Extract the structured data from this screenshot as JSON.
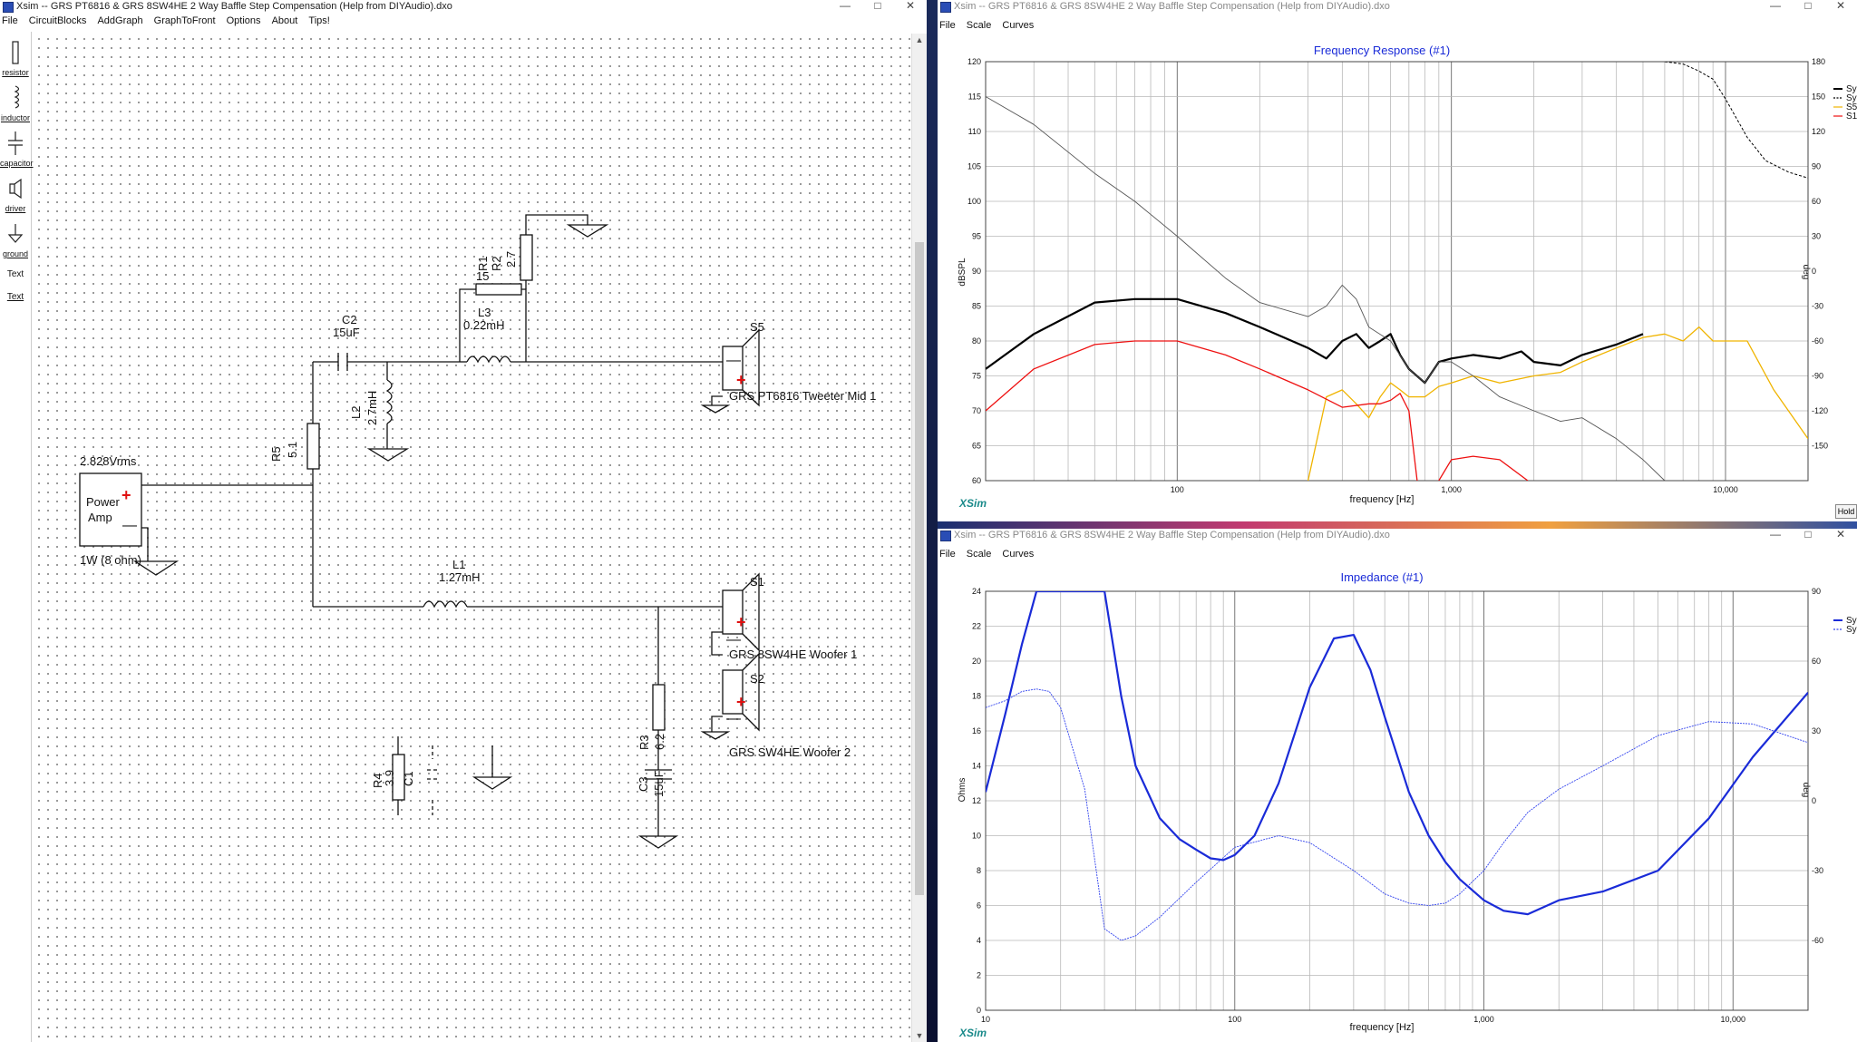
{
  "left_window": {
    "title": "Xsim -- GRS PT6816 & GRS 8SW4HE 2 Way Baffle Step Compensation (Help from DIYAudio).dxo",
    "menu": [
      "File",
      "CircuitBlocks",
      "AddGraph",
      "GraphToFront",
      "Options",
      "About",
      "Tips!"
    ],
    "tools": [
      {
        "label": "resistor",
        "icon": "resistor-icon"
      },
      {
        "label": "inductor",
        "icon": "inductor-icon"
      },
      {
        "label": "capacitor",
        "icon": "capacitor-icon"
      },
      {
        "label": "driver",
        "icon": "speaker-icon"
      },
      {
        "label": "ground",
        "icon": "ground-icon"
      },
      {
        "label": "Text",
        "icon": ""
      },
      {
        "label": "Text",
        "icon": ""
      }
    ],
    "schematic": {
      "amp_voltage": "2.828Vrms",
      "amp_name1": "Power",
      "amp_name2": "Amp",
      "amp_load": "1W (8 ohm)",
      "R1_name": "R1",
      "R1_value": "15",
      "R2_name": "R2",
      "R2_value": "2.7",
      "L3_name": "L3",
      "L3_value": "0.22mH",
      "C2_name": "C2",
      "C2_value": "15uF",
      "L2_name": "L2",
      "L2_value": "2.7mH",
      "R5_name": "R5",
      "R5_value": "5.1",
      "S5_name": "S5",
      "S5_label": "GRS PT6816 Tweeter Mid 1",
      "L1_name": "L1",
      "L1_value": "1.27mH",
      "S1_name": "S1",
      "S1_label": "GRS 8SW4HE Woofer 1",
      "S2_name": "S2",
      "S2_label": "GRS SW4HE Woofer 2",
      "R3_name": "R3",
      "R3_value": "6.2",
      "C3_name": "C3",
      "C3_value": "15uF",
      "R4_name": "R4",
      "R4_value": "3.9",
      "C1_name": "C1"
    }
  },
  "freq_window": {
    "title": "Xsim -- GRS PT6816 & GRS 8SW4HE 2 Way Baffle Step Compensation (Help from DIYAudio).dxo",
    "menu": [
      "File",
      "Scale",
      "Curves"
    ],
    "brand": "XSim",
    "hold_label": "Hold",
    "chart_data": {
      "type": "line",
      "title": "Frequency Response (#1)",
      "xlabel": "frequency [Hz]",
      "ylabel": "dBSPL",
      "y2label": "deg",
      "x_scale": "log",
      "xlim": [
        20,
        20000
      ],
      "ylim": [
        60,
        120
      ],
      "y2lim": [
        -180,
        180
      ],
      "x_tick_labels": [
        "100",
        "1,000",
        "10,000"
      ],
      "y_tick_labels": [
        "60",
        "65",
        "70",
        "75",
        "80",
        "85",
        "90",
        "95",
        "100",
        "105",
        "110",
        "115",
        "120"
      ],
      "y2_tick_labels": [
        "-150",
        "-120",
        "-90",
        "-60",
        "-30",
        "0",
        "30",
        "60",
        "90",
        "120",
        "150",
        "180"
      ],
      "grid": true,
      "legend_position": "right",
      "series": [
        {
          "name": "Sys",
          "color": "#000000",
          "style": "solid-bold",
          "x": [
            20,
            30,
            50,
            70,
            100,
            150,
            200,
            300,
            350,
            400,
            450,
            500,
            550,
            600,
            650,
            700,
            800,
            900,
            1000,
            1200,
            1500,
            1800,
            2000,
            2500,
            3000,
            4000,
            5000
          ],
          "y": [
            76,
            81,
            85.5,
            86,
            86,
            84,
            82,
            79,
            77.5,
            80,
            81,
            79,
            80,
            81,
            78,
            76,
            74,
            77,
            77.5,
            78,
            77.5,
            78.5,
            77,
            76.5,
            78,
            79.5,
            81
          ]
        },
        {
          "name": "Sys°",
          "color": "#000000",
          "style": "dashed",
          "axis": "y2",
          "x": [
            6000,
            7000,
            8000,
            9000,
            10000,
            12000,
            14000,
            17000,
            20000
          ],
          "y": [
            180,
            178,
            172,
            165,
            148,
            115,
            95,
            85,
            80
          ]
        },
        {
          "name": "S5",
          "color": "#f0b400",
          "style": "solid",
          "x": [
            300,
            350,
            400,
            450,
            500,
            550,
            600,
            650,
            700,
            800,
            900,
            1000,
            1200,
            1500,
            2000,
            2500,
            3000,
            4000,
            5000,
            6000,
            7000,
            8000,
            9000,
            10000,
            12000,
            15000,
            20000
          ],
          "y": [
            60,
            72,
            73,
            71,
            69,
            72,
            74,
            73,
            72,
            72,
            73.5,
            74,
            75,
            74,
            75,
            75.5,
            77,
            79,
            80.5,
            81,
            80,
            82,
            80,
            80,
            80,
            73,
            66
          ]
        },
        {
          "name": "S1",
          "color": "#ee1111",
          "style": "solid",
          "x": [
            20,
            30,
            50,
            70,
            100,
            150,
            200,
            300,
            400,
            500,
            550,
            600,
            650,
            700,
            750
          ],
          "y": [
            70,
            76,
            79.5,
            80,
            80,
            78,
            76,
            73,
            70.5,
            71,
            71,
            71.5,
            72.5,
            70,
            60
          ]
        },
        {
          "name": "S1",
          "color": "#ee1111",
          "style": "solid",
          "x": [
            900,
            1000,
            1200,
            1500,
            1900
          ],
          "y": [
            60,
            63,
            63.5,
            63,
            60
          ]
        },
        {
          "name": "",
          "color": "#555555",
          "style": "thin",
          "x": [
            20,
            30,
            50,
            70,
            100,
            150,
            200,
            300,
            350,
            400,
            450,
            500,
            600,
            700,
            800,
            900,
            1000,
            1200,
            1500,
            2000,
            2500,
            3000,
            4000,
            5000,
            6000
          ],
          "y": [
            115,
            111,
            104,
            100,
            95,
            89,
            85.5,
            83.5,
            85,
            88,
            86,
            82,
            80,
            76,
            74,
            77,
            77,
            75,
            72,
            70,
            68.5,
            69,
            66,
            63,
            60
          ]
        }
      ]
    }
  },
  "imp_window": {
    "title": "Xsim -- GRS PT6816 & GRS 8SW4HE 2 Way Baffle Step Compensation (Help from DIYAudio).dxo",
    "menu": [
      "File",
      "Scale",
      "Curves"
    ],
    "brand": "XSim",
    "chart_data": {
      "type": "line",
      "title": "Impedance (#1)",
      "xlabel": "frequency [Hz]",
      "ylabel": "Ohms",
      "y2label": "deg",
      "x_scale": "log",
      "xlim": [
        10,
        20000
      ],
      "ylim": [
        0,
        24
      ],
      "y2lim": [
        -90,
        90
      ],
      "x_tick_labels": [
        "10",
        "100",
        "1,000",
        "10,000"
      ],
      "y_tick_labels": [
        "0",
        "2",
        "4",
        "6",
        "8",
        "10",
        "12",
        "14",
        "16",
        "18",
        "20",
        "22",
        "24"
      ],
      "y2_tick_labels": [
        "-60",
        "-30",
        "0",
        "30",
        "60",
        "90"
      ],
      "grid": true,
      "legend_position": "right",
      "series": [
        {
          "name": "Sys",
          "color": "#1a2bd8",
          "style": "solid-bold",
          "x": [
            10,
            12,
            14,
            16,
            18,
            30,
            35,
            40,
            50,
            60,
            70,
            80,
            90,
            100,
            120,
            150,
            200,
            250,
            300,
            350,
            400,
            500,
            600,
            700,
            800,
            1000,
            1200,
            1500,
            2000,
            3000,
            5000,
            8000,
            12000,
            20000
          ],
          "y": [
            12.5,
            17,
            21,
            24,
            24,
            24,
            18,
            14,
            11,
            9.8,
            9.2,
            8.7,
            8.6,
            8.9,
            10,
            13,
            18.5,
            21.3,
            21.5,
            19.5,
            16.8,
            12.5,
            10,
            8.5,
            7.5,
            6.3,
            5.7,
            5.5,
            6.3,
            6.8,
            8,
            11,
            14.5,
            18.2
          ]
        },
        {
          "name": "Sys°",
          "color": "#3344ee",
          "style": "dashed-thin",
          "axis": "y2",
          "x": [
            10,
            12,
            14,
            16,
            18,
            20,
            22,
            25,
            30,
            35,
            40,
            50,
            70,
            100,
            150,
            200,
            300,
            400,
            500,
            600,
            700,
            800,
            1000,
            1200,
            1500,
            2000,
            3000,
            5000,
            8000,
            12000,
            20000
          ],
          "y": [
            40,
            43,
            47,
            48,
            47,
            40,
            25,
            5,
            -55,
            -60,
            -58,
            -50,
            -35,
            -20,
            -15,
            -18,
            -30,
            -40,
            -44,
            -45,
            -44,
            -40,
            -30,
            -18,
            -5,
            5,
            15,
            28,
            34,
            33,
            25
          ]
        }
      ]
    }
  },
  "theme": {
    "accent": "#1a2bd8",
    "sys_black": "#000000",
    "s5_yellow": "#f0b400",
    "s1_red": "#ee1111",
    "brand_teal": "#1a8a8a"
  }
}
